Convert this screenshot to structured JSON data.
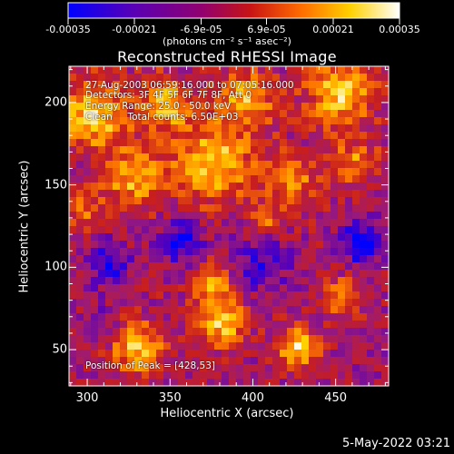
{
  "chart_data": {
    "type": "heatmap",
    "title": "Reconstructed RHESSI Image",
    "xlabel": "Heliocentric X (arcsec)",
    "ylabel": "Heliocentric Y (arcsec)",
    "xlim": [
      289,
      482
    ],
    "ylim": [
      28,
      222
    ],
    "x_ticks": [
      "300",
      "350",
      "400",
      "450"
    ],
    "x_tick_values": [
      300,
      350,
      400,
      450
    ],
    "y_ticks": [
      "50",
      "100",
      "150",
      "200"
    ],
    "y_tick_values": [
      50,
      100,
      150,
      200
    ],
    "colorbar": {
      "ticks": [
        "-0.00035",
        "-0.00021",
        "-6.9e-05",
        "6.9e-05",
        "0.00021",
        "0.00035"
      ],
      "tick_values": [
        -0.00035,
        -0.00021,
        -6.9e-05,
        6.9e-05,
        0.00021,
        0.00035
      ],
      "unit_label": "(photons cm⁻² s⁻¹ asec⁻²)",
      "colormap_stops": [
        "#0000ff",
        "#5500bb",
        "#9a1a7a",
        "#c81e1e",
        "#ff7a00",
        "#ffd200",
        "#ffffff"
      ]
    },
    "peak": {
      "x": 428,
      "y": 53
    }
  },
  "annotations": {
    "time": "27-Aug-2003 06:59:16.000 to 07:05:16.000",
    "detectors": "Detectors: 3F 4F 5F 6F 7F 8F, Att 0",
    "energy": "Energy Range: 25.0 - 50.0 keV",
    "clean": "Clean     Total counts: 6.50E+03",
    "peak_text": "Position of Peak = [428,53]"
  },
  "timestamp": "5-May-2022 03:21"
}
